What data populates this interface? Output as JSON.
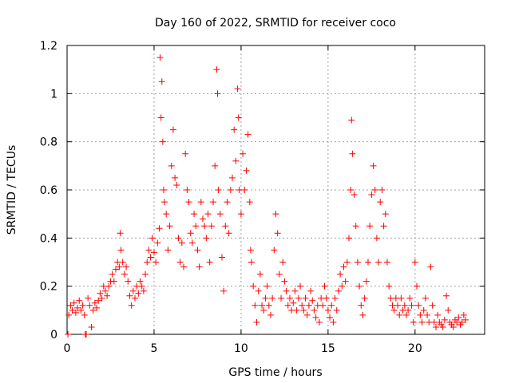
{
  "chart_data": {
    "type": "scatter",
    "title": "Day 160 of 2022, SRMTID for receiver coco",
    "xlabel": "GPS time / hours",
    "ylabel": "SRMTID / TECUs",
    "xlim": [
      0,
      24
    ],
    "ylim": [
      0,
      1.2
    ],
    "xticks": [
      0,
      5,
      10,
      15,
      20
    ],
    "xtick_labels": [
      "0",
      "5",
      "10",
      "15",
      "20"
    ],
    "yticks": [
      0,
      0.2,
      0.4,
      0.6,
      0.8,
      1,
      1.2
    ],
    "ytick_labels": [
      "0",
      "0.2",
      "0.4",
      "0.6",
      "0.8",
      "1",
      "1.2"
    ],
    "grid": true,
    "marker": "+",
    "series": [
      {
        "name": "SRMTID",
        "color": "#ff0000",
        "points": [
          [
            0.05,
            0.0
          ],
          [
            0.1,
            0.08
          ],
          [
            1.05,
            0.0
          ],
          [
            1.1,
            0.0
          ],
          [
            0.2,
            0.12
          ],
          [
            0.3,
            0.1
          ],
          [
            0.4,
            0.13
          ],
          [
            0.5,
            0.09
          ],
          [
            0.6,
            0.11
          ],
          [
            0.7,
            0.14
          ],
          [
            0.8,
            0.1
          ],
          [
            0.9,
            0.12
          ],
          [
            1.0,
            0.08
          ],
          [
            1.2,
            0.15
          ],
          [
            1.3,
            0.12
          ],
          [
            1.4,
            0.03
          ],
          [
            1.5,
            0.1
          ],
          [
            1.6,
            0.13
          ],
          [
            1.7,
            0.11
          ],
          [
            1.8,
            0.14
          ],
          [
            1.9,
            0.17
          ],
          [
            2.0,
            0.15
          ],
          [
            2.1,
            0.2
          ],
          [
            2.2,
            0.18
          ],
          [
            2.3,
            0.16
          ],
          [
            2.4,
            0.2
          ],
          [
            2.5,
            0.22
          ],
          [
            2.6,
            0.25
          ],
          [
            2.7,
            0.22
          ],
          [
            2.8,
            0.27
          ],
          [
            2.9,
            0.3
          ],
          [
            3.0,
            0.28
          ],
          [
            3.05,
            0.42
          ],
          [
            3.1,
            0.35
          ],
          [
            3.2,
            0.3
          ],
          [
            3.3,
            0.25
          ],
          [
            3.4,
            0.28
          ],
          [
            3.5,
            0.22
          ],
          [
            3.6,
            0.16
          ],
          [
            3.7,
            0.12
          ],
          [
            3.8,
            0.18
          ],
          [
            3.9,
            0.15
          ],
          [
            4.0,
            0.2
          ],
          [
            4.1,
            0.17
          ],
          [
            4.2,
            0.22
          ],
          [
            4.3,
            0.2
          ],
          [
            4.4,
            0.18
          ],
          [
            4.5,
            0.25
          ],
          [
            4.6,
            0.3
          ],
          [
            4.7,
            0.35
          ],
          [
            4.8,
            0.32
          ],
          [
            4.9,
            0.4
          ],
          [
            5.0,
            0.34
          ],
          [
            5.1,
            0.3
          ],
          [
            5.2,
            0.38
          ],
          [
            5.3,
            0.44
          ],
          [
            5.35,
            1.15
          ],
          [
            5.4,
            0.9
          ],
          [
            5.45,
            1.05
          ],
          [
            5.5,
            0.8
          ],
          [
            5.55,
            0.6
          ],
          [
            5.6,
            0.55
          ],
          [
            5.7,
            0.5
          ],
          [
            5.8,
            0.35
          ],
          [
            5.9,
            0.45
          ],
          [
            6.0,
            0.7
          ],
          [
            6.1,
            0.85
          ],
          [
            6.2,
            0.65
          ],
          [
            6.3,
            0.62
          ],
          [
            6.4,
            0.4
          ],
          [
            6.5,
            0.3
          ],
          [
            6.6,
            0.38
          ],
          [
            6.7,
            0.28
          ],
          [
            6.8,
            0.75
          ],
          [
            6.9,
            0.6
          ],
          [
            7.0,
            0.55
          ],
          [
            7.1,
            0.42
          ],
          [
            7.2,
            0.38
          ],
          [
            7.3,
            0.5
          ],
          [
            7.4,
            0.45
          ],
          [
            7.5,
            0.35
          ],
          [
            7.6,
            0.28
          ],
          [
            7.7,
            0.55
          ],
          [
            7.8,
            0.48
          ],
          [
            7.9,
            0.45
          ],
          [
            8.0,
            0.4
          ],
          [
            8.1,
            0.5
          ],
          [
            8.2,
            0.3
          ],
          [
            8.3,
            0.45
          ],
          [
            8.4,
            0.55
          ],
          [
            8.5,
            0.7
          ],
          [
            8.6,
            1.1
          ],
          [
            8.65,
            1.0
          ],
          [
            8.7,
            0.6
          ],
          [
            8.8,
            0.5
          ],
          [
            8.9,
            0.32
          ],
          [
            9.0,
            0.18
          ],
          [
            9.1,
            0.45
          ],
          [
            9.2,
            0.55
          ],
          [
            9.3,
            0.42
          ],
          [
            9.4,
            0.6
          ],
          [
            9.5,
            0.65
          ],
          [
            9.6,
            0.85
          ],
          [
            9.7,
            0.72
          ],
          [
            9.8,
            1.02
          ],
          [
            9.85,
            0.9
          ],
          [
            9.9,
            0.6
          ],
          [
            10.0,
            0.5
          ],
          [
            10.1,
            0.75
          ],
          [
            10.2,
            0.6
          ],
          [
            10.3,
            0.68
          ],
          [
            10.4,
            0.83
          ],
          [
            10.5,
            0.55
          ],
          [
            10.55,
            0.35
          ],
          [
            10.6,
            0.3
          ],
          [
            10.7,
            0.2
          ],
          [
            10.8,
            0.12
          ],
          [
            10.9,
            0.05
          ],
          [
            11.0,
            0.18
          ],
          [
            11.1,
            0.25
          ],
          [
            11.2,
            0.12
          ],
          [
            11.3,
            0.1
          ],
          [
            11.4,
            0.15
          ],
          [
            11.5,
            0.2
          ],
          [
            11.6,
            0.12
          ],
          [
            11.7,
            0.08
          ],
          [
            11.8,
            0.15
          ],
          [
            11.9,
            0.35
          ],
          [
            12.0,
            0.5
          ],
          [
            12.1,
            0.42
          ],
          [
            12.2,
            0.25
          ],
          [
            12.3,
            0.15
          ],
          [
            12.4,
            0.3
          ],
          [
            12.5,
            0.22
          ],
          [
            12.6,
            0.18
          ],
          [
            12.7,
            0.12
          ],
          [
            12.8,
            0.15
          ],
          [
            12.9,
            0.1
          ],
          [
            13.0,
            0.13
          ],
          [
            13.1,
            0.18
          ],
          [
            13.2,
            0.1
          ],
          [
            13.3,
            0.15
          ],
          [
            13.4,
            0.2
          ],
          [
            13.5,
            0.12
          ],
          [
            13.6,
            0.1
          ],
          [
            13.7,
            0.15
          ],
          [
            13.8,
            0.08
          ],
          [
            13.9,
            0.12
          ],
          [
            14.0,
            0.18
          ],
          [
            14.1,
            0.14
          ],
          [
            14.2,
            0.1
          ],
          [
            14.3,
            0.07
          ],
          [
            14.4,
            0.12
          ],
          [
            14.5,
            0.05
          ],
          [
            14.6,
            0.15
          ],
          [
            14.7,
            0.12
          ],
          [
            14.8,
            0.2
          ],
          [
            14.9,
            0.15
          ],
          [
            15.0,
            0.1
          ],
          [
            15.1,
            0.07
          ],
          [
            15.2,
            0.12
          ],
          [
            15.3,
            0.05
          ],
          [
            15.4,
            0.15
          ],
          [
            15.5,
            0.1
          ],
          [
            15.6,
            0.18
          ],
          [
            15.7,
            0.25
          ],
          [
            15.8,
            0.2
          ],
          [
            15.9,
            0.28
          ],
          [
            16.0,
            0.22
          ],
          [
            16.1,
            0.3
          ],
          [
            16.2,
            0.4
          ],
          [
            16.3,
            0.6
          ],
          [
            16.35,
            0.89
          ],
          [
            16.4,
            0.75
          ],
          [
            16.5,
            0.58
          ],
          [
            16.6,
            0.45
          ],
          [
            16.7,
            0.3
          ],
          [
            16.8,
            0.2
          ],
          [
            16.9,
            0.12
          ],
          [
            17.0,
            0.08
          ],
          [
            17.1,
            0.15
          ],
          [
            17.2,
            0.22
          ],
          [
            17.3,
            0.3
          ],
          [
            17.4,
            0.45
          ],
          [
            17.5,
            0.58
          ],
          [
            17.6,
            0.7
          ],
          [
            17.7,
            0.6
          ],
          [
            17.8,
            0.4
          ],
          [
            17.9,
            0.3
          ],
          [
            18.0,
            0.55
          ],
          [
            18.1,
            0.6
          ],
          [
            18.2,
            0.45
          ],
          [
            18.3,
            0.5
          ],
          [
            18.4,
            0.3
          ],
          [
            18.5,
            0.2
          ],
          [
            18.6,
            0.15
          ],
          [
            18.7,
            0.12
          ],
          [
            18.8,
            0.1
          ],
          [
            18.9,
            0.15
          ],
          [
            19.0,
            0.12
          ],
          [
            19.1,
            0.08
          ],
          [
            19.2,
            0.15
          ],
          [
            19.3,
            0.1
          ],
          [
            19.4,
            0.12
          ],
          [
            19.5,
            0.08
          ],
          [
            19.6,
            0.1
          ],
          [
            19.7,
            0.15
          ],
          [
            19.8,
            0.12
          ],
          [
            19.9,
            0.05
          ],
          [
            20.0,
            0.3
          ],
          [
            20.1,
            0.2
          ],
          [
            20.2,
            0.12
          ],
          [
            20.3,
            0.08
          ],
          [
            20.4,
            0.05
          ],
          [
            20.5,
            0.1
          ],
          [
            20.6,
            0.15
          ],
          [
            20.7,
            0.08
          ],
          [
            20.8,
            0.05
          ],
          [
            20.9,
            0.28
          ],
          [
            21.0,
            0.12
          ],
          [
            21.1,
            0.05
          ],
          [
            21.2,
            0.03
          ],
          [
            21.3,
            0.08
          ],
          [
            21.4,
            0.05
          ],
          [
            21.5,
            0.04
          ],
          [
            21.6,
            0.03
          ],
          [
            21.7,
            0.06
          ],
          [
            21.8,
            0.16
          ],
          [
            21.9,
            0.1
          ],
          [
            22.0,
            0.05
          ],
          [
            22.1,
            0.04
          ],
          [
            22.2,
            0.03
          ],
          [
            22.3,
            0.06
          ],
          [
            22.4,
            0.05
          ],
          [
            22.5,
            0.07
          ],
          [
            22.6,
            0.04
          ],
          [
            22.7,
            0.05
          ],
          [
            22.8,
            0.08
          ],
          [
            22.9,
            0.06
          ]
        ]
      }
    ]
  }
}
